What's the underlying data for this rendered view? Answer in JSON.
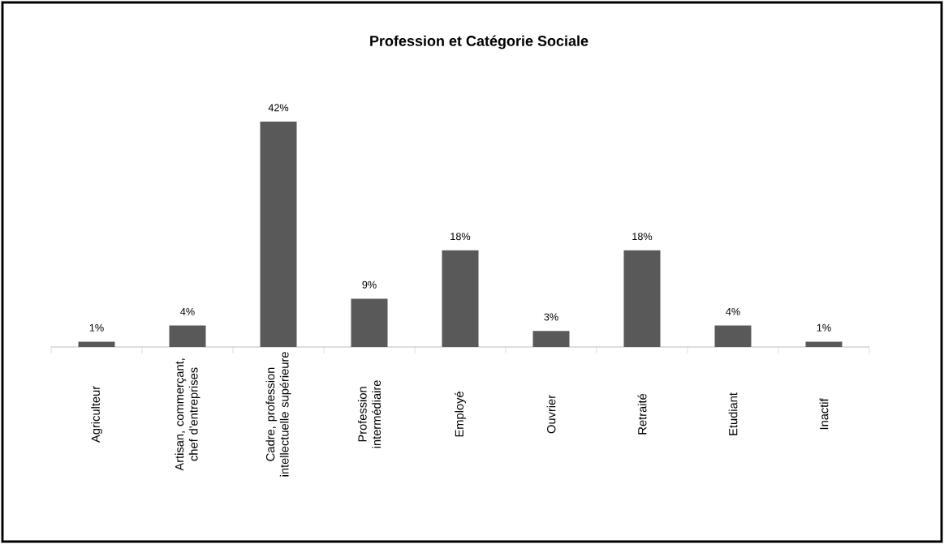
{
  "chart_data": {
    "type": "bar",
    "title": "Profession et Catégorie Sociale",
    "categories": [
      "Agriculteur",
      "Artisan, commerçant, chef d'entreprises",
      "Cadre, profession intellectuelle supérieure",
      "Profession intermédiaire",
      "Employé",
      "Ouvrier",
      "Retraité",
      "Etudiant",
      "Inactif"
    ],
    "values": [
      1,
      4,
      42,
      9,
      18,
      3,
      18,
      4,
      1
    ],
    "value_labels": [
      "1%",
      "4%",
      "42%",
      "9%",
      "18%",
      "3%",
      "18%",
      "4%",
      "1%"
    ],
    "color": "#595959"
  }
}
